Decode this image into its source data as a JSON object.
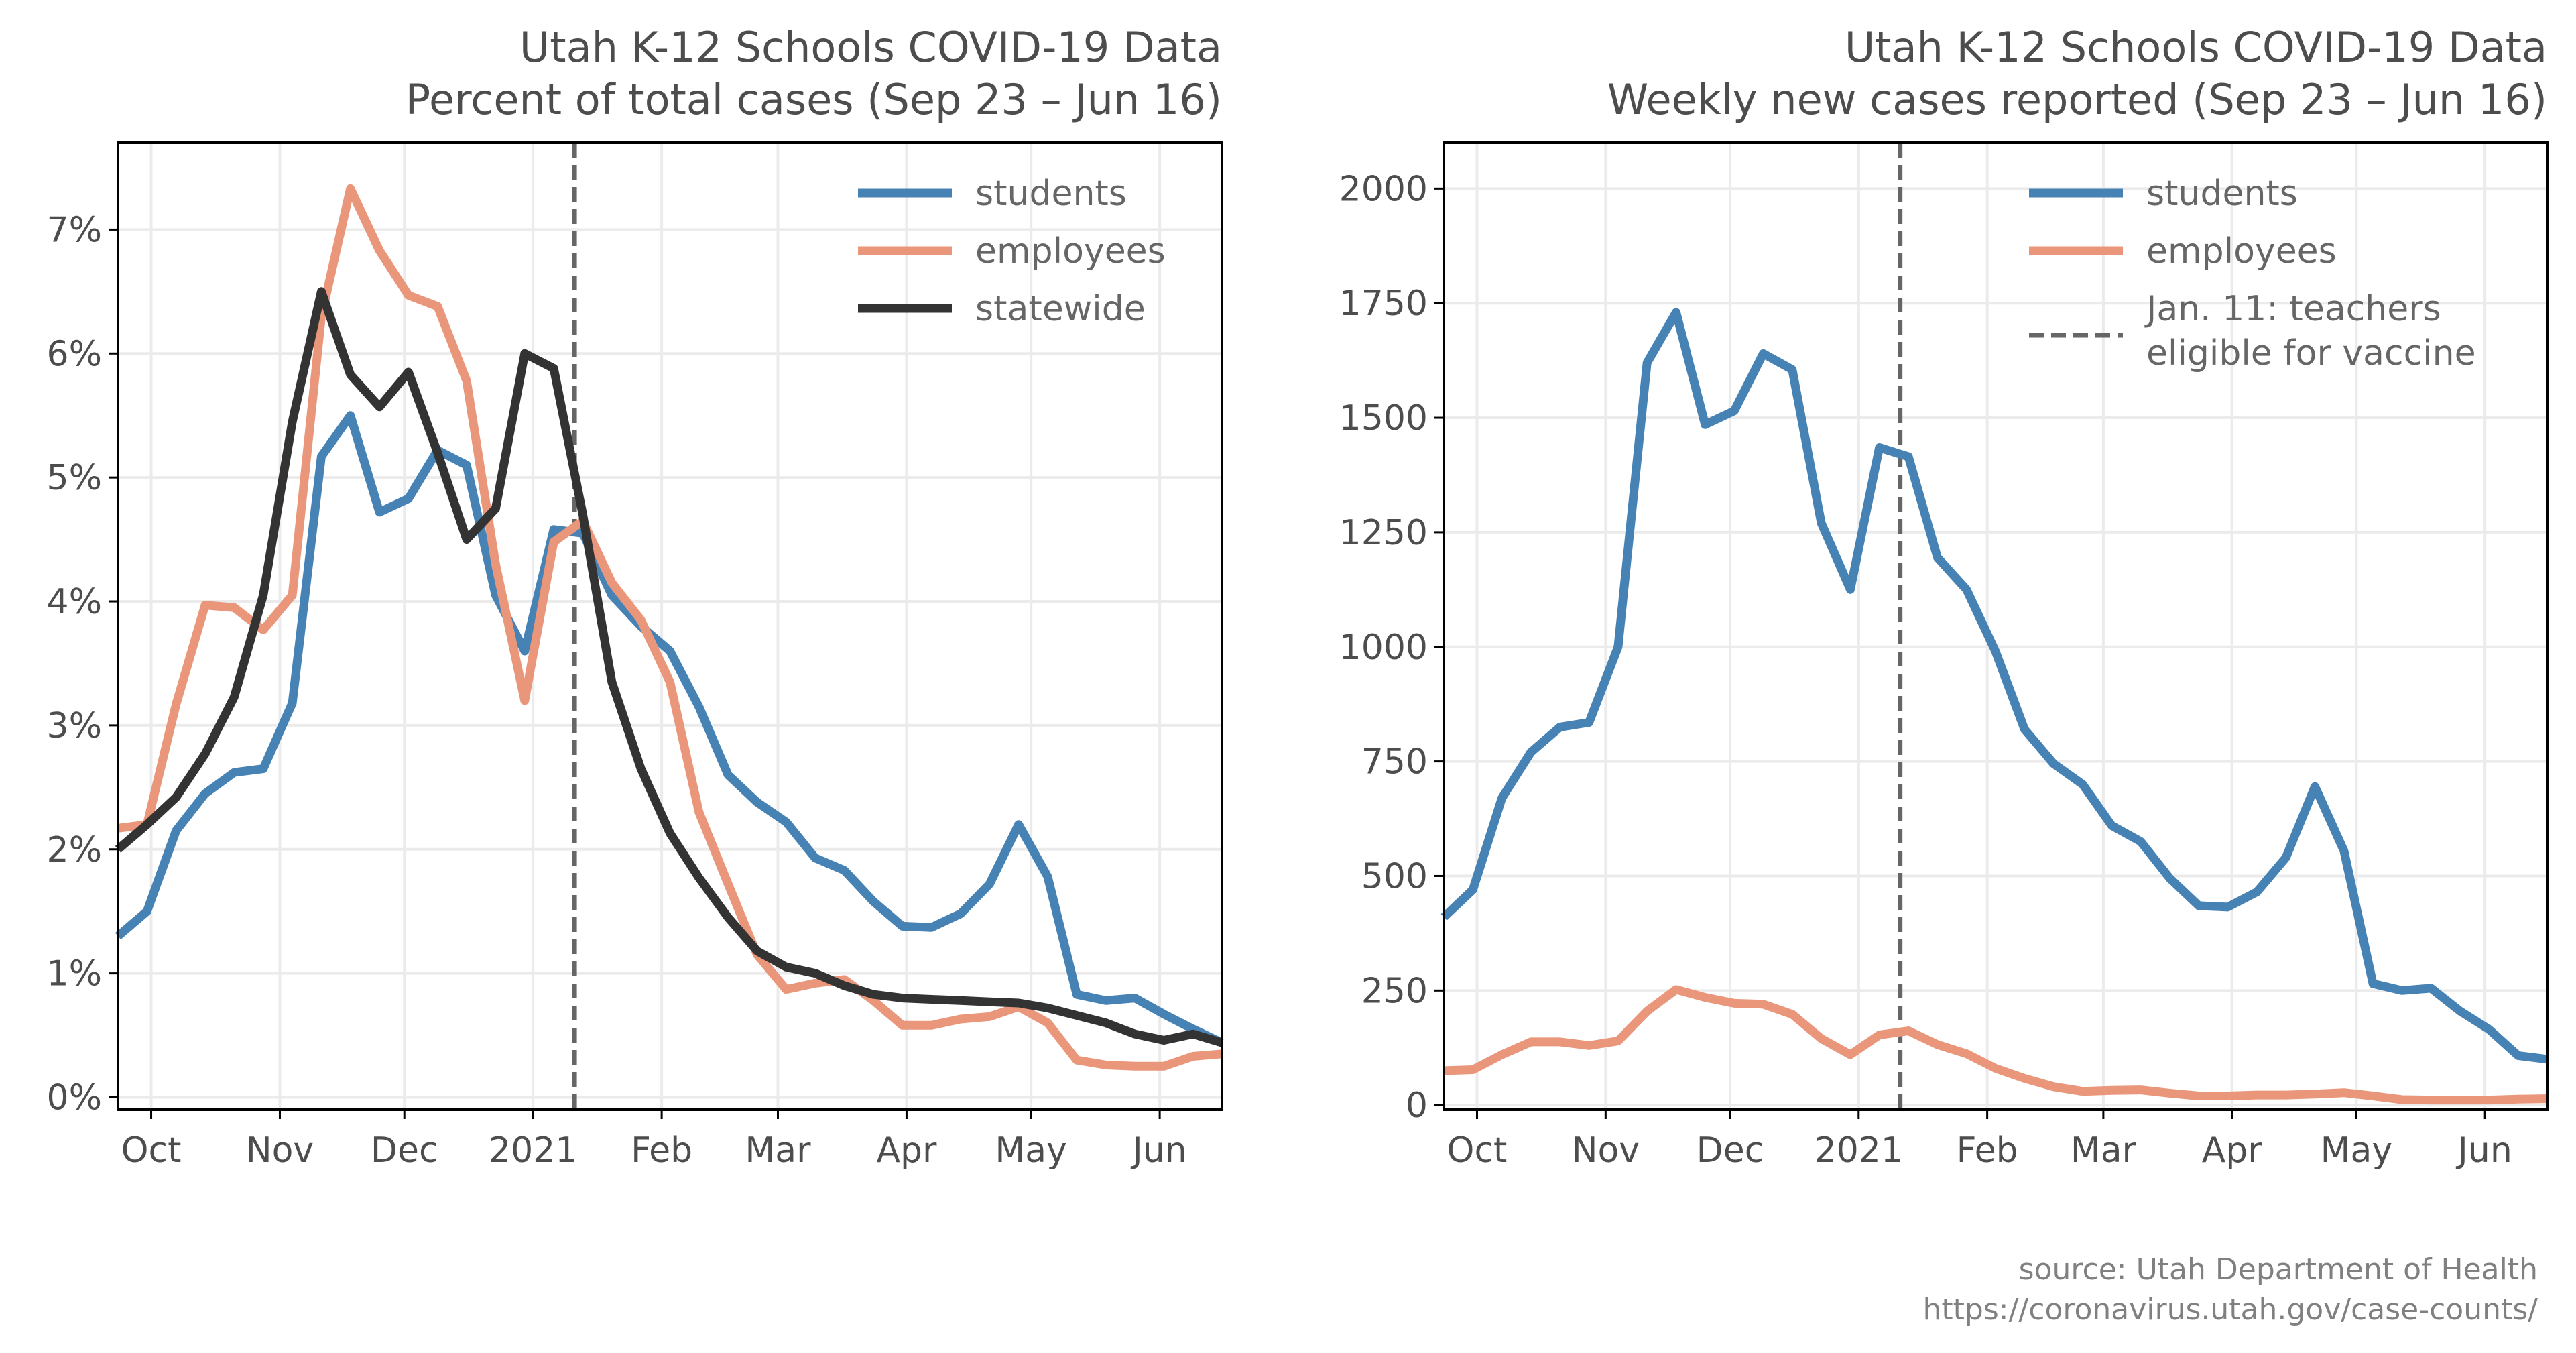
{
  "colors": {
    "students": "#4682b4",
    "employees": "#e9967a",
    "statewide": "#333333",
    "vline": "#666666",
    "grid": "#ebebeb",
    "text": "#4d4d4d"
  },
  "source": {
    "line1": "source: Utah Department of Health",
    "line2": "https://coronavirus.utah.gov/case-counts/"
  },
  "chart_data": [
    {
      "type": "line",
      "title": "Utah K-12 Schools COVID-19 Data",
      "subtitle": "Percent of total cases (Sep 23 – Jun 16)",
      "xlim": [
        "2020-09-23",
        "2021-06-16"
      ],
      "ylim": [
        -0.1,
        7.7
      ],
      "x_ticks": [
        {
          "date": "2020-10-01",
          "label": "Oct"
        },
        {
          "date": "2020-11-01",
          "label": "Nov"
        },
        {
          "date": "2020-12-01",
          "label": "Dec"
        },
        {
          "date": "2021-01-01",
          "label": "2021"
        },
        {
          "date": "2021-02-01",
          "label": "Feb"
        },
        {
          "date": "2021-03-01",
          "label": "Mar"
        },
        {
          "date": "2021-04-01",
          "label": "Apr"
        },
        {
          "date": "2021-05-01",
          "label": "May"
        },
        {
          "date": "2021-06-01",
          "label": "Jun"
        }
      ],
      "y_ticks": [
        {
          "value": 0,
          "label": "0%"
        },
        {
          "value": 1,
          "label": "1%"
        },
        {
          "value": 2,
          "label": "2%"
        },
        {
          "value": 3,
          "label": "3%"
        },
        {
          "value": 4,
          "label": "4%"
        },
        {
          "value": 5,
          "label": "5%"
        },
        {
          "value": 6,
          "label": "6%"
        },
        {
          "value": 7,
          "label": "7%"
        }
      ],
      "grid": true,
      "vline": {
        "date": "2021-01-11"
      },
      "legend_position": "upper right",
      "legend": [
        {
          "label": "students",
          "color": "#4682b4",
          "dashed": false
        },
        {
          "label": "employees",
          "color": "#e9967a",
          "dashed": false
        },
        {
          "label": "statewide",
          "color": "#333333",
          "dashed": false
        }
      ],
      "x": [
        "2020-09-23",
        "2020-09-30",
        "2020-10-07",
        "2020-10-14",
        "2020-10-21",
        "2020-10-28",
        "2020-11-04",
        "2020-11-11",
        "2020-11-18",
        "2020-11-25",
        "2020-12-02",
        "2020-12-09",
        "2020-12-16",
        "2020-12-23",
        "2020-12-30",
        "2021-01-06",
        "2021-01-13",
        "2021-01-20",
        "2021-01-27",
        "2021-02-03",
        "2021-02-10",
        "2021-02-17",
        "2021-02-24",
        "2021-03-03",
        "2021-03-10",
        "2021-03-17",
        "2021-03-24",
        "2021-03-31",
        "2021-04-07",
        "2021-04-14",
        "2021-04-21",
        "2021-04-28",
        "2021-05-05",
        "2021-05-12",
        "2021-05-19",
        "2021-05-26",
        "2021-06-02",
        "2021-06-09",
        "2021-06-16"
      ],
      "series": [
        {
          "name": "students",
          "color": "#4682b4",
          "values": [
            1.3,
            1.5,
            2.15,
            2.45,
            2.62,
            2.65,
            3.18,
            5.17,
            5.5,
            4.72,
            4.83,
            5.22,
            5.1,
            4.05,
            3.6,
            4.58,
            4.55,
            4.05,
            3.8,
            3.6,
            3.15,
            2.6,
            2.38,
            2.22,
            1.93,
            1.83,
            1.58,
            1.38,
            1.37,
            1.48,
            1.72,
            2.2,
            1.78,
            0.83,
            0.78,
            0.8,
            0.67,
            0.55,
            0.44
          ]
        },
        {
          "name": "employees",
          "color": "#e9967a",
          "values": [
            2.17,
            2.2,
            3.17,
            3.97,
            3.95,
            3.77,
            4.05,
            6.3,
            7.33,
            6.83,
            6.47,
            6.38,
            5.78,
            4.3,
            3.2,
            4.48,
            4.65,
            4.15,
            3.85,
            3.35,
            2.3,
            1.72,
            1.15,
            0.87,
            0.92,
            0.95,
            0.78,
            0.58,
            0.58,
            0.63,
            0.65,
            0.73,
            0.6,
            0.3,
            0.26,
            0.25,
            0.25,
            0.33,
            0.35
          ]
        },
        {
          "name": "statewide",
          "color": "#333333",
          "values": [
            2.0,
            2.2,
            2.42,
            2.77,
            3.23,
            4.05,
            5.45,
            6.5,
            5.83,
            5.57,
            5.85,
            5.2,
            4.5,
            4.75,
            6.0,
            5.88,
            4.7,
            3.35,
            2.65,
            2.13,
            1.77,
            1.45,
            1.18,
            1.05,
            1.0,
            0.9,
            0.83,
            0.8,
            0.79,
            0.78,
            0.77,
            0.76,
            0.72,
            0.66,
            0.6,
            0.51,
            0.46,
            0.51,
            0.44
          ]
        }
      ]
    },
    {
      "type": "line",
      "title": "Utah K-12 Schools COVID-19 Data",
      "subtitle": "Weekly new cases reported (Sep 23 – Jun 16)",
      "xlim": [
        "2020-09-23",
        "2021-06-16"
      ],
      "ylim": [
        -10,
        2100
      ],
      "x_ticks": [
        {
          "date": "2020-10-01",
          "label": "Oct"
        },
        {
          "date": "2020-11-01",
          "label": "Nov"
        },
        {
          "date": "2020-12-01",
          "label": "Dec"
        },
        {
          "date": "2021-01-01",
          "label": "2021"
        },
        {
          "date": "2021-02-01",
          "label": "Feb"
        },
        {
          "date": "2021-03-01",
          "label": "Mar"
        },
        {
          "date": "2021-04-01",
          "label": "Apr"
        },
        {
          "date": "2021-05-01",
          "label": "May"
        },
        {
          "date": "2021-06-01",
          "label": "Jun"
        }
      ],
      "y_ticks": [
        {
          "value": 0,
          "label": "0"
        },
        {
          "value": 250,
          "label": "250"
        },
        {
          "value": 500,
          "label": "500"
        },
        {
          "value": 750,
          "label": "750"
        },
        {
          "value": 1000,
          "label": "1000"
        },
        {
          "value": 1250,
          "label": "1250"
        },
        {
          "value": 1500,
          "label": "1500"
        },
        {
          "value": 1750,
          "label": "1750"
        },
        {
          "value": 2000,
          "label": "2000"
        }
      ],
      "grid": true,
      "vline": {
        "date": "2021-01-11"
      },
      "legend_position": "upper right",
      "legend": [
        {
          "label": "students",
          "color": "#4682b4",
          "dashed": false
        },
        {
          "label": "employees",
          "color": "#e9967a",
          "dashed": false
        },
        {
          "label": "Jan. 11: teachers\neligible for vaccine",
          "color": "#666666",
          "dashed": true
        }
      ],
      "x": [
        "2020-09-23",
        "2020-09-30",
        "2020-10-07",
        "2020-10-14",
        "2020-10-21",
        "2020-10-28",
        "2020-11-04",
        "2020-11-11",
        "2020-11-18",
        "2020-11-25",
        "2020-12-02",
        "2020-12-09",
        "2020-12-16",
        "2020-12-23",
        "2020-12-30",
        "2021-01-06",
        "2021-01-13",
        "2021-01-20",
        "2021-01-27",
        "2021-02-03",
        "2021-02-10",
        "2021-02-17",
        "2021-02-24",
        "2021-03-03",
        "2021-03-10",
        "2021-03-17",
        "2021-03-24",
        "2021-03-31",
        "2021-04-07",
        "2021-04-14",
        "2021-04-21",
        "2021-04-28",
        "2021-05-05",
        "2021-05-12",
        "2021-05-19",
        "2021-05-26",
        "2021-06-02",
        "2021-06-09",
        "2021-06-16"
      ],
      "series": [
        {
          "name": "students",
          "color": "#4682b4",
          "values": [
            410,
            470,
            670,
            770,
            825,
            835,
            1000,
            1620,
            1730,
            1485,
            1515,
            1640,
            1605,
            1270,
            1125,
            1435,
            1415,
            1195,
            1125,
            990,
            820,
            745,
            700,
            610,
            575,
            495,
            435,
            432,
            465,
            540,
            695,
            555,
            265,
            250,
            255,
            205,
            165,
            108,
            100
          ]
        },
        {
          "name": "employees",
          "color": "#e9967a",
          "values": [
            75,
            77,
            110,
            138,
            138,
            130,
            140,
            205,
            252,
            235,
            222,
            220,
            198,
            145,
            110,
            153,
            162,
            132,
            112,
            80,
            58,
            40,
            30,
            32,
            33,
            26,
            20,
            20,
            22,
            22,
            24,
            27,
            20,
            12,
            11,
            11,
            11,
            13,
            14
          ]
        }
      ]
    }
  ]
}
